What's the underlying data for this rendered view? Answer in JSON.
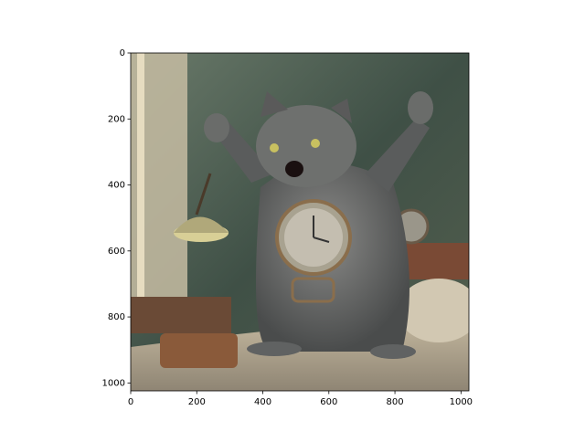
{
  "chart_data": {
    "type": "image",
    "xlim": [
      0,
      1024
    ],
    "ylim": [
      1024,
      0
    ],
    "xticks": [
      0,
      200,
      400,
      600,
      800,
      1000
    ],
    "yticks": [
      0,
      200,
      400,
      600,
      800,
      1000
    ]
  }
}
